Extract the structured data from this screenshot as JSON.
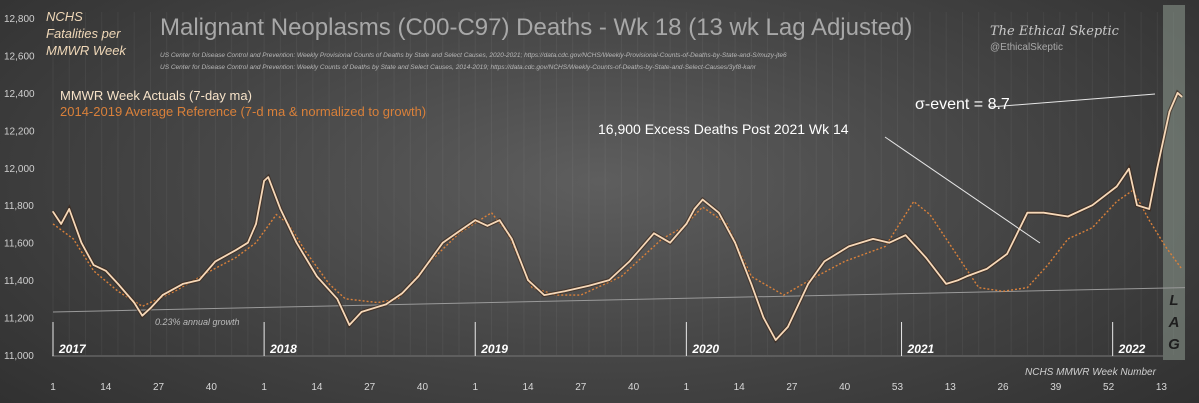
{
  "chart_data": {
    "type": "line",
    "title": "Malignant Neoplasms (C00-C97) Deaths - Wk 18 (13 wk Lag Adjusted)",
    "ylabel": "NCHS Fatalities per MMWR Week",
    "xlabel": "NCHS MMWR Week Number",
    "sources": [
      "US Center for Disease Control and Prevention: Weekly  Provisional Counts of Deaths by State and Select Causes, 2020-2021; https://data.cdc.gov/NCHS/Weekly-Provisional-Counts-of-Deaths-by-State-and-S/muzy-jte6",
      "US Center for Disease Control and Prevention: Weekly  Counts of Deaths by State and Select Causes, 2014-2019; https://data.cdc.gov/NCHS/Weekly-Counts-of-Deaths-by-State-and-Select-Causes/3yf8-kanr"
    ],
    "brand": "The Ethical Skeptic",
    "handle": "@EthicalSkeptic",
    "ylim": [
      11000,
      12800
    ],
    "yticks": [
      11000,
      11200,
      11400,
      11600,
      11800,
      12000,
      12200,
      12400,
      12600,
      12800
    ],
    "ytick_labels": [
      "11,000",
      "11,200",
      "11,400",
      "11,600",
      "11,800",
      "12,000",
      "12,200",
      "12,400",
      "12,600",
      "12,800"
    ],
    "years": [
      {
        "label": "2017",
        "week_index": 0
      },
      {
        "label": "2018",
        "week_index": 52
      },
      {
        "label": "2019",
        "week_index": 104
      },
      {
        "label": "2020",
        "week_index": 156
      },
      {
        "label": "2021",
        "week_index": 209
      },
      {
        "label": "2022",
        "week_index": 261
      }
    ],
    "xticks": [
      {
        "label": "1",
        "i": 0
      },
      {
        "label": "14",
        "i": 13
      },
      {
        "label": "27",
        "i": 26
      },
      {
        "label": "40",
        "i": 39
      },
      {
        "label": "1",
        "i": 52
      },
      {
        "label": "14",
        "i": 65
      },
      {
        "label": "27",
        "i": 78
      },
      {
        "label": "40",
        "i": 91
      },
      {
        "label": "1",
        "i": 104
      },
      {
        "label": "14",
        "i": 117
      },
      {
        "label": "27",
        "i": 130
      },
      {
        "label": "40",
        "i": 143
      },
      {
        "label": "1",
        "i": 156
      },
      {
        "label": "14",
        "i": 169
      },
      {
        "label": "27",
        "i": 182
      },
      {
        "label": "40",
        "i": 195
      },
      {
        "label": "53",
        "i": 208
      },
      {
        "label": "13",
        "i": 221
      },
      {
        "label": "26",
        "i": 234
      },
      {
        "label": "39",
        "i": 247
      },
      {
        "label": "52",
        "i": 260
      },
      {
        "label": "13",
        "i": 273
      }
    ],
    "series": [
      {
        "name": "MMWR Week Actuals (7-day ma)",
        "color": "#f6d8b8",
        "points": [
          [
            0,
            11765
          ],
          [
            2,
            11700
          ],
          [
            4,
            11780
          ],
          [
            7,
            11600
          ],
          [
            10,
            11480
          ],
          [
            13,
            11450
          ],
          [
            16,
            11380
          ],
          [
            20,
            11280
          ],
          [
            22,
            11210
          ],
          [
            24,
            11250
          ],
          [
            27,
            11320
          ],
          [
            32,
            11380
          ],
          [
            36,
            11400
          ],
          [
            40,
            11500
          ],
          [
            45,
            11560
          ],
          [
            48,
            11600
          ],
          [
            50,
            11700
          ],
          [
            52,
            11930
          ],
          [
            53,
            11950
          ],
          [
            56,
            11780
          ],
          [
            60,
            11600
          ],
          [
            65,
            11420
          ],
          [
            70,
            11300
          ],
          [
            73,
            11160
          ],
          [
            76,
            11230
          ],
          [
            82,
            11270
          ],
          [
            86,
            11330
          ],
          [
            90,
            11420
          ],
          [
            96,
            11600
          ],
          [
            100,
            11660
          ],
          [
            104,
            11720
          ],
          [
            107,
            11690
          ],
          [
            110,
            11720
          ],
          [
            113,
            11620
          ],
          [
            117,
            11400
          ],
          [
            121,
            11320
          ],
          [
            126,
            11340
          ],
          [
            132,
            11370
          ],
          [
            137,
            11400
          ],
          [
            142,
            11500
          ],
          [
            148,
            11650
          ],
          [
            152,
            11600
          ],
          [
            156,
            11700
          ],
          [
            158,
            11780
          ],
          [
            160,
            11830
          ],
          [
            164,
            11760
          ],
          [
            168,
            11600
          ],
          [
            172,
            11380
          ],
          [
            175,
            11200
          ],
          [
            178,
            11080
          ],
          [
            181,
            11150
          ],
          [
            186,
            11380
          ],
          [
            190,
            11500
          ],
          [
            196,
            11580
          ],
          [
            202,
            11620
          ],
          [
            206,
            11600
          ],
          [
            210,
            11640
          ],
          [
            215,
            11520
          ],
          [
            220,
            11380
          ],
          [
            223,
            11400
          ],
          [
            225,
            11420
          ],
          [
            230,
            11460
          ],
          [
            235,
            11540
          ],
          [
            240,
            11760
          ],
          [
            244,
            11760
          ],
          [
            250,
            11740
          ],
          [
            256,
            11800
          ],
          [
            262,
            11900
          ],
          [
            265,
            11995
          ],
          [
            267,
            11800
          ],
          [
            270,
            11780
          ],
          [
            272,
            12000
          ],
          [
            275,
            12300
          ],
          [
            277,
            12400
          ],
          [
            278,
            12380
          ]
        ]
      },
      {
        "name": "2014-2019  Average Reference (7-d ma & normalized to growth)",
        "color": "#d9803a",
        "points": [
          [
            0,
            11700
          ],
          [
            5,
            11620
          ],
          [
            10,
            11450
          ],
          [
            16,
            11340
          ],
          [
            22,
            11260
          ],
          [
            30,
            11340
          ],
          [
            38,
            11440
          ],
          [
            45,
            11520
          ],
          [
            50,
            11600
          ],
          [
            55,
            11750
          ],
          [
            58,
            11700
          ],
          [
            62,
            11560
          ],
          [
            68,
            11380
          ],
          [
            72,
            11300
          ],
          [
            80,
            11280
          ],
          [
            85,
            11300
          ],
          [
            92,
            11480
          ],
          [
            100,
            11650
          ],
          [
            108,
            11760
          ],
          [
            112,
            11650
          ],
          [
            118,
            11360
          ],
          [
            124,
            11320
          ],
          [
            130,
            11320
          ],
          [
            140,
            11420
          ],
          [
            150,
            11620
          ],
          [
            155,
            11680
          ],
          [
            160,
            11790
          ],
          [
            166,
            11700
          ],
          [
            172,
            11420
          ],
          [
            180,
            11320
          ],
          [
            188,
            11420
          ],
          [
            195,
            11500
          ],
          [
            205,
            11580
          ],
          [
            212,
            11820
          ],
          [
            216,
            11750
          ],
          [
            220,
            11620
          ],
          [
            228,
            11360
          ],
          [
            234,
            11340
          ],
          [
            240,
            11360
          ],
          [
            245,
            11480
          ],
          [
            250,
            11620
          ],
          [
            256,
            11680
          ],
          [
            262,
            11820
          ],
          [
            266,
            11880
          ],
          [
            270,
            11720
          ],
          [
            274,
            11580
          ],
          [
            278,
            11460
          ]
        ]
      }
    ],
    "trend": {
      "label": "0.23% annual growth",
      "start": 11230,
      "end": 11360
    },
    "annotations": {
      "excess": "16,900  Excess Deaths  Post 2021 Wk 14",
      "sigma": "σ-event  =    8.7",
      "lag": [
        "L",
        "A",
        "G"
      ]
    }
  }
}
